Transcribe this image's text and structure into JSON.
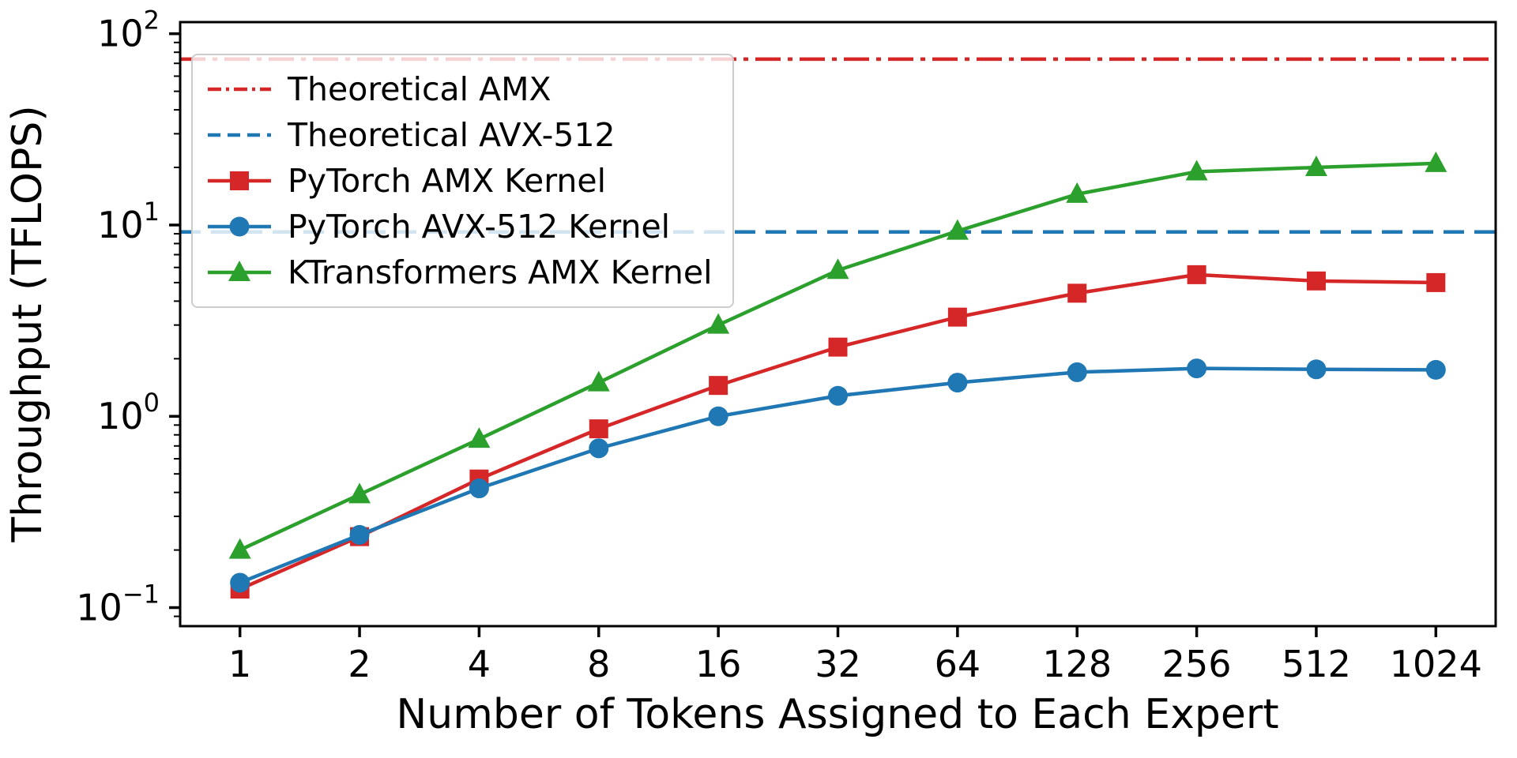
{
  "chart_data": {
    "type": "line",
    "title": "",
    "xlabel": "Number of Tokens Assigned to Each Expert",
    "ylabel": "Throughput (TFLOPS)",
    "x_scale": "log2",
    "y_scale": "log10",
    "x": [
      1,
      2,
      4,
      8,
      16,
      32,
      64,
      128,
      256,
      512,
      1024
    ],
    "x_tick_labels": [
      "1",
      "2",
      "4",
      "8",
      "16",
      "32",
      "64",
      "128",
      "256",
      "512",
      "1024"
    ],
    "ylim": [
      0.08,
      115
    ],
    "y_ticks": [
      {
        "value": 0.1,
        "base": "10",
        "exp": "−1"
      },
      {
        "value": 1,
        "base": "10",
        "exp": "0"
      },
      {
        "value": 10,
        "base": "10",
        "exp": "1"
      },
      {
        "value": 100,
        "base": "10",
        "exp": "2"
      }
    ],
    "grid": false,
    "hlines": [
      {
        "name": "Theoretical AMX",
        "value": 73.7,
        "color": "#d62728",
        "linestyle": "dashdot"
      },
      {
        "name": "Theoretical AVX-512",
        "value": 9.2,
        "color": "#1f77b4",
        "linestyle": "dashed"
      }
    ],
    "series": [
      {
        "name": "PyTorch AMX Kernel",
        "color": "#d62728",
        "marker": "square",
        "linestyle": "solid",
        "values": [
          0.125,
          0.235,
          0.47,
          0.86,
          1.45,
          2.3,
          3.3,
          4.4,
          5.5,
          5.1,
          5.0
        ]
      },
      {
        "name": "PyTorch AVX-512 Kernel",
        "color": "#1f77b4",
        "marker": "circle",
        "linestyle": "solid",
        "values": [
          0.135,
          0.24,
          0.42,
          0.68,
          1.0,
          1.28,
          1.5,
          1.7,
          1.78,
          1.76,
          1.75
        ]
      },
      {
        "name": "KTransformers AMX Kernel",
        "color": "#2ca02c",
        "marker": "triangle",
        "linestyle": "solid",
        "values": [
          0.2,
          0.39,
          0.76,
          1.5,
          3.0,
          5.8,
          9.3,
          14.5,
          19.0,
          20.0,
          21.0
        ]
      }
    ],
    "legend": {
      "position": "upper left",
      "entries": [
        {
          "label": "Theoretical AMX",
          "color": "#d62728",
          "linestyle": "dashdot",
          "marker": "none"
        },
        {
          "label": "Theoretical AVX-512",
          "color": "#1f77b4",
          "linestyle": "dashed",
          "marker": "none"
        },
        {
          "label": "PyTorch AMX Kernel",
          "color": "#d62728",
          "linestyle": "solid",
          "marker": "square"
        },
        {
          "label": "PyTorch AVX-512 Kernel",
          "color": "#1f77b4",
          "linestyle": "solid",
          "marker": "circle"
        },
        {
          "label": "KTransformers AMX Kernel",
          "color": "#2ca02c",
          "linestyle": "solid",
          "marker": "triangle"
        }
      ]
    },
    "colors": {
      "red": "#d62728",
      "blue": "#1f77b4",
      "green": "#2ca02c",
      "axis": "#000000"
    }
  }
}
